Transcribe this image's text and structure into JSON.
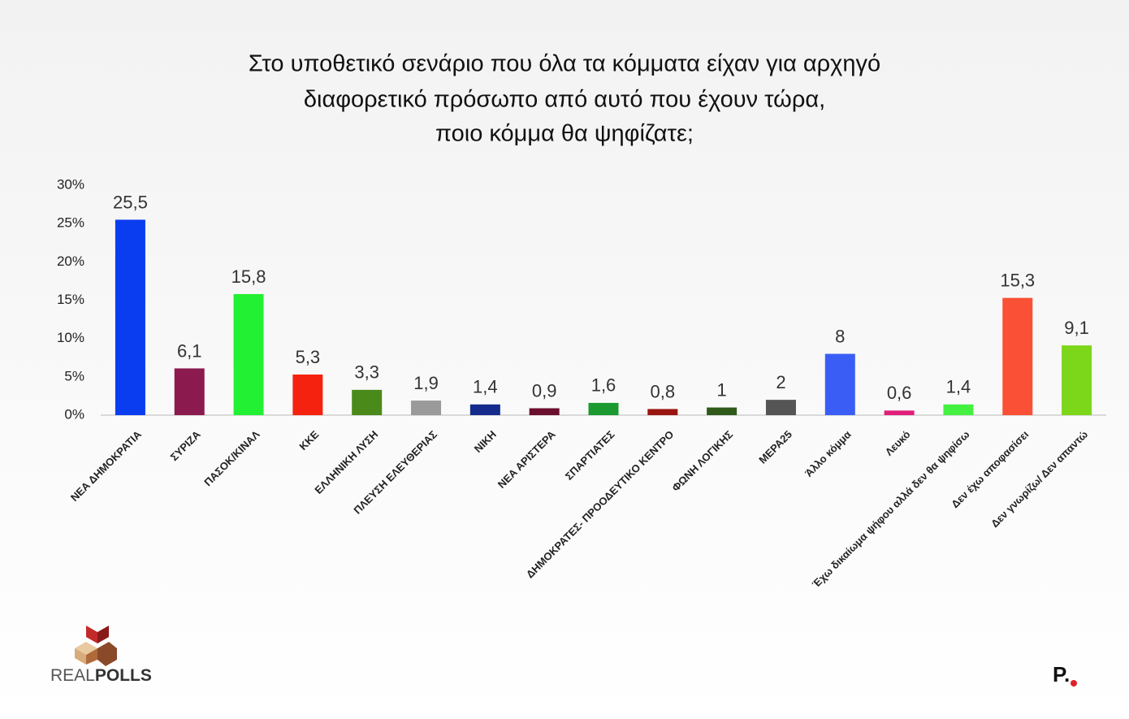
{
  "chart_data": {
    "type": "bar",
    "title": [
      "Στο υποθετικό σενάριο που όλα τα κόμματα είχαν για αρχηγό",
      "διαφορετικό πρόσωπο από αυτό που έχουν τώρα,",
      "ποιο κόμμα θα ψηφίζατε;"
    ],
    "categories": [
      "ΝΕΑ ΔΗΜΟΚΡΑΤΙΑ",
      "ΣΥΡΙΖΑ",
      "ΠΑΣΟΚ/ΚΙΝΑΛ",
      "ΚΚΕ",
      "ΕΛΛΗΝΙΚΗ ΛΥΣΗ",
      "ΠΛΕΥΣΗ ΕΛΕΥΘΕΡΙΑΣ",
      "ΝΙΚΗ",
      "ΝΕΑ ΑΡΙΣΤΕΡΑ",
      "ΣΠΑΡΤΙΑΤΕΣ",
      "ΔΗΜΟΚΡΑΤΕΣ-  ΠΡΟΟΔΕΥΤΙΚΟ ΚΕΝΤΡΟ",
      "ΦΩΝΗ ΛΟΓΙΚΗΣ",
      "ΜΕΡΑ25",
      "Άλλο κόμμα",
      "Λευκό",
      "Έχω δικαίωμα ψήφου αλλά δεν θα ψηφίσω",
      "Δεν έχω αποφασίσει",
      "Δεν γνωρίζω/ Δεν απαντώ"
    ],
    "values": [
      25.5,
      6.1,
      15.8,
      5.3,
      3.3,
      1.9,
      1.4,
      0.9,
      1.6,
      0.8,
      1,
      2,
      8,
      0.6,
      1.4,
      15.3,
      9.1
    ],
    "value_labels": [
      "25,5",
      "6,1",
      "15,8",
      "5,3",
      "3,3",
      "1,9",
      "1,4",
      "0,9",
      "1,6",
      "0,8",
      "1",
      "2",
      "8",
      "0,6",
      "1,4",
      "15,3",
      "9,1"
    ],
    "colors": [
      "#0a3cf0",
      "#8b1a4f",
      "#22f032",
      "#f5220f",
      "#4a8a1a",
      "#9a9a9a",
      "#142a8c",
      "#6b0f2e",
      "#1a9a30",
      "#9b1510",
      "#2f5a1a",
      "#555555",
      "#3a5ef5",
      "#e0207a",
      "#44f040",
      "#fa5035",
      "#7cd61a"
    ],
    "ylim": [
      0,
      30
    ],
    "yticks": [
      {
        "value": 0,
        "label": "0%"
      },
      {
        "value": 5,
        "label": "5%"
      },
      {
        "value": 10,
        "label": "10%"
      },
      {
        "value": 15,
        "label": "15%"
      },
      {
        "value": 20,
        "label": "20%"
      },
      {
        "value": 25,
        "label": "25%"
      },
      {
        "value": 30,
        "label": "30%"
      }
    ],
    "grid": false
  },
  "branding": {
    "logo_light": "REAL",
    "logo_bold": "POLLS",
    "corner_mark": "P."
  }
}
